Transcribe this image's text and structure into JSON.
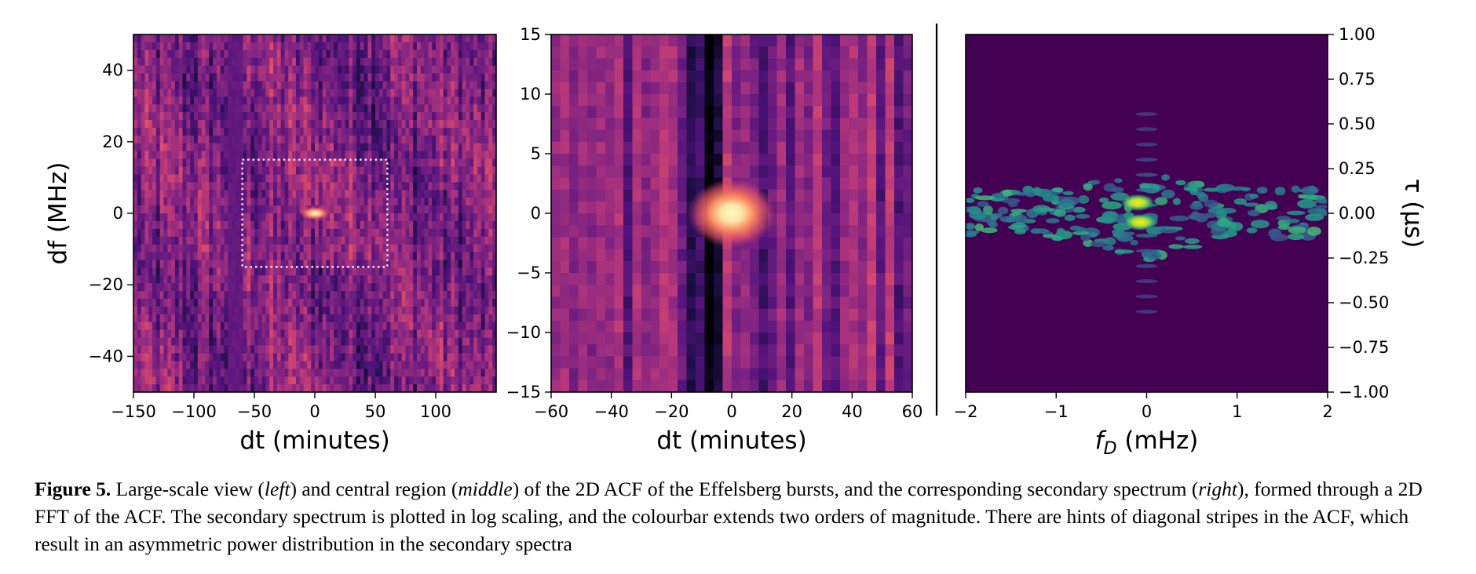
{
  "chart_data": [
    {
      "type": "heatmap",
      "panel": "left",
      "xlabel": "dt (minutes)",
      "ylabel": "df (MHz)",
      "xlim": [
        -150,
        150
      ],
      "ylim": [
        -50,
        50
      ],
      "xticks": [
        "−150",
        "−100",
        "−50",
        "0",
        "50",
        "100"
      ],
      "xtick_values": [
        -150,
        -100,
        -50,
        0,
        50,
        100
      ],
      "yticks": [
        "40",
        "20",
        "0",
        "−20",
        "−40"
      ],
      "ytick_values": [
        40,
        20,
        0,
        -20,
        -40
      ],
      "colormap": "magma",
      "peak": {
        "x": 0,
        "y": 0
      },
      "inset_box": {
        "x": [
          -60,
          60
        ],
        "y": [
          -15,
          15
        ]
      }
    },
    {
      "type": "heatmap",
      "panel": "middle",
      "xlabel": "dt (minutes)",
      "ylabel": "",
      "xlim": [
        -60,
        60
      ],
      "ylim": [
        -15,
        15
      ],
      "xticks": [
        "−60",
        "−40",
        "−20",
        "0",
        "20",
        "40",
        "60"
      ],
      "xtick_values": [
        -60,
        -40,
        -20,
        0,
        20,
        40,
        60
      ],
      "yticks": [
        "15",
        "10",
        "5",
        "0",
        "−5",
        "−10",
        "−15"
      ],
      "ytick_values": [
        15,
        10,
        5,
        0,
        -5,
        -10,
        -15
      ],
      "colormap": "magma",
      "peak": {
        "x": 0,
        "y": 0
      }
    },
    {
      "type": "heatmap",
      "panel": "right",
      "xlabel_main": "f",
      "xlabel_sub": "D",
      "xlabel_unit": " (mHz)",
      "ylabel": "τ (μs)",
      "xlim": [
        -2,
        2
      ],
      "ylim": [
        -1,
        1
      ],
      "xticks": [
        "−2",
        "−1",
        "0",
        "1",
        "2"
      ],
      "xtick_values": [
        -2,
        -1,
        0,
        1,
        2
      ],
      "yticks": [
        "1.00",
        "0.75",
        "0.50",
        "0.25",
        "0.00",
        "−0.25",
        "−0.50",
        "−0.75",
        "−1.00"
      ],
      "ytick_values": [
        1.0,
        0.75,
        0.5,
        0.25,
        0.0,
        -0.25,
        -0.5,
        -0.75,
        -1.0
      ],
      "colormap": "viridis",
      "scale": "log",
      "background": "#440154"
    }
  ],
  "caption": {
    "label": "Figure 5.",
    "parts": [
      {
        "text": "  Large-scale view (",
        "style": "normal"
      },
      {
        "text": "left",
        "style": "italic"
      },
      {
        "text": ") and central region (",
        "style": "normal"
      },
      {
        "text": "middle",
        "style": "italic"
      },
      {
        "text": ") of the 2D ACF of the Effelsberg bursts, and the corresponding secondary spectrum (",
        "style": "normal"
      },
      {
        "text": "right",
        "style": "italic"
      },
      {
        "text": "), formed through a 2D FFT of the ACF. The secondary spectrum is plotted in log scaling, and the colourbar extends two orders of magnitude. There are hints of diagonal stripes in the ACF, which result in an asymmetric power distribution in the secondary spectra",
        "style": "normal"
      }
    ]
  }
}
